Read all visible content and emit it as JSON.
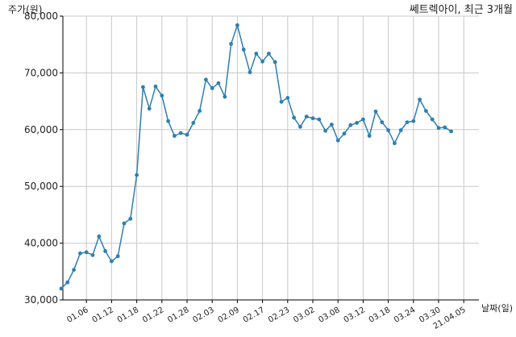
{
  "chart_data": {
    "type": "line",
    "title": "쎄트렉아이, 최근 3개월",
    "xlabel": "날짜(일)",
    "ylabel": "주가(원)",
    "ylim": [
      30000,
      80000
    ],
    "yticks": [
      30000,
      40000,
      50000,
      60000,
      70000,
      80000
    ],
    "ytick_labels": [
      "30,000",
      "40,000",
      "50,000",
      "60,000",
      "70,000",
      "80,000"
    ],
    "xtick_labels": [
      "01.06",
      "01.12",
      "01.18",
      "01.22",
      "01.28",
      "02.03",
      "02.09",
      "02.17",
      "02.23",
      "03.02",
      "03.08",
      "03.12",
      "03.18",
      "03.24",
      "03.30",
      "21.04.05"
    ],
    "xtick_index": [
      4,
      8,
      12,
      16,
      20,
      24,
      28,
      32,
      36,
      40,
      44,
      48,
      52,
      56,
      60,
      64
    ],
    "grid": true,
    "color": "#2e7fb0",
    "series": [
      {
        "values": [
          32000,
          33100,
          35300,
          38200,
          38400,
          37900,
          41200,
          38600,
          36800,
          37700,
          43500,
          44300,
          52000,
          67500,
          63700,
          67600,
          66000,
          61500,
          58900,
          59400,
          59100,
          61200,
          63300,
          68800,
          67300,
          68200,
          65800,
          75100,
          78400,
          74100,
          70100,
          73400,
          72000,
          73400,
          71900,
          64900,
          65600,
          62100,
          60500,
          62300,
          62000,
          61800,
          59800,
          60900,
          58100,
          59300,
          60800,
          61200,
          61800,
          58900,
          63200,
          61300,
          59900,
          57600,
          59900,
          61300,
          61500,
          65300,
          63300,
          61800,
          60300,
          60400,
          59700
        ]
      }
    ]
  }
}
